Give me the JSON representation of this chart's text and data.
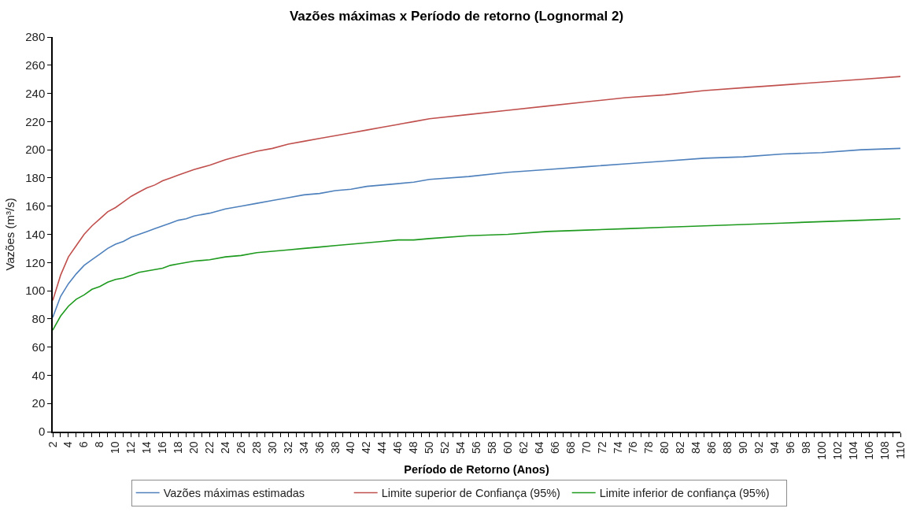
{
  "chart_data": {
    "type": "line",
    "title": "Vazões máximas x Período de retorno (Lognormal 2)",
    "xlabel": "Período de Retorno (Anos)",
    "ylabel": "Vazões (m³/s)",
    "x": [
      2,
      3,
      4,
      5,
      6,
      7,
      8,
      9,
      10,
      11,
      12,
      13,
      14,
      15,
      16,
      17,
      18,
      19,
      20,
      22,
      24,
      26,
      28,
      30,
      32,
      34,
      36,
      38,
      40,
      42,
      44,
      46,
      48,
      50,
      55,
      60,
      65,
      70,
      75,
      80,
      85,
      90,
      95,
      100,
      105,
      110
    ],
    "series": [
      {
        "name": "Vazões máximas estimadas",
        "color": "#4f81bd",
        "values": [
          81,
          96,
          105,
          112,
          118,
          122,
          126,
          130,
          133,
          135,
          138,
          140,
          142,
          144,
          146,
          148,
          150,
          151,
          153,
          155,
          158,
          160,
          162,
          164,
          166,
          168,
          169,
          171,
          172,
          174,
          175,
          176,
          177,
          179,
          181,
          184,
          186,
          188,
          190,
          192,
          194,
          195,
          197,
          198,
          200,
          201
        ]
      },
      {
        "name": "Limite superior de Confiança (95%)",
        "color": "#c0504d",
        "values": [
          93,
          111,
          124,
          132,
          140,
          146,
          151,
          156,
          159,
          163,
          167,
          170,
          173,
          175,
          178,
          180,
          182,
          184,
          186,
          189,
          193,
          196,
          199,
          201,
          204,
          206,
          208,
          210,
          212,
          214,
          216,
          218,
          220,
          222,
          225,
          228,
          231,
          234,
          237,
          239,
          242,
          244,
          246,
          248,
          250,
          252
        ]
      },
      {
        "name": "Limite inferior de confiança (95%)",
        "color": "#1e9a1e",
        "values": [
          72,
          82,
          89,
          94,
          97,
          101,
          103,
          106,
          108,
          109,
          111,
          113,
          114,
          115,
          116,
          118,
          119,
          120,
          121,
          122,
          124,
          125,
          127,
          128,
          129,
          130,
          131,
          132,
          133,
          134,
          135,
          136,
          136,
          137,
          139,
          140,
          142,
          143,
          144,
          145,
          146,
          147,
          148,
          149,
          150,
          151
        ]
      }
    ],
    "xlim": [
      2,
      110
    ],
    "xticks": [
      2,
      {
        "value": 3,
        "label": null
      },
      4,
      {
        "value": 5,
        "label": null
      },
      6,
      {
        "value": 7,
        "label": null
      },
      8,
      {
        "value": 9,
        "label": null
      },
      10,
      {
        "value": 11,
        "label": null
      },
      12,
      {
        "value": 13,
        "label": null
      },
      14,
      {
        "value": 15,
        "label": null
      },
      16,
      {
        "value": 17,
        "label": null
      },
      18,
      {
        "value": 19,
        "label": null
      },
      20,
      {
        "value": 21,
        "label": null
      },
      22,
      {
        "value": 23,
        "label": null
      },
      24,
      {
        "value": 25,
        "label": null
      },
      26,
      {
        "value": 27,
        "label": null
      },
      28,
      {
        "value": 29,
        "label": null
      },
      30,
      {
        "value": 31,
        "label": null
      },
      32,
      {
        "value": 33,
        "label": null
      },
      34,
      {
        "value": 35,
        "label": null
      },
      36,
      {
        "value": 37,
        "label": null
      },
      38,
      {
        "value": 39,
        "label": null
      },
      40,
      {
        "value": 41,
        "label": null
      },
      42,
      {
        "value": 43,
        "label": null
      },
      44,
      {
        "value": 45,
        "label": null
      },
      46,
      {
        "value": 47,
        "label": null
      },
      48,
      {
        "value": 49,
        "label": null
      },
      50,
      {
        "value": 51,
        "label": null
      },
      52,
      {
        "value": 53,
        "label": null
      },
      54,
      {
        "value": 55,
        "label": null
      },
      56,
      {
        "value": 57,
        "label": null
      },
      58,
      {
        "value": 59,
        "label": null
      },
      60,
      {
        "value": 61,
        "label": null
      },
      62,
      {
        "value": 63,
        "label": null
      },
      64,
      {
        "value": 65,
        "label": null
      },
      66,
      {
        "value": 67,
        "label": null
      },
      68,
      {
        "value": 69,
        "label": null
      },
      70,
      {
        "value": 71,
        "label": null
      },
      72,
      {
        "value": 73,
        "label": null
      },
      74,
      {
        "value": 75,
        "label": null
      },
      76,
      {
        "value": 77,
        "label": null
      },
      78,
      {
        "value": 79,
        "label": null
      },
      80,
      {
        "value": 81,
        "label": null
      },
      82,
      {
        "value": 83,
        "label": null
      },
      84,
      {
        "value": 85,
        "label": null
      },
      86,
      {
        "value": 87,
        "label": null
      },
      88,
      {
        "value": 89,
        "label": null
      },
      90,
      {
        "value": 91,
        "label": null
      },
      92,
      {
        "value": 93,
        "label": null
      },
      94,
      {
        "value": 95,
        "label": null
      },
      96,
      {
        "value": 97,
        "label": null
      },
      98,
      {
        "value": 99,
        "label": null
      },
      100,
      {
        "value": 101,
        "label": null
      },
      102,
      {
        "value": 103,
        "label": null
      },
      104,
      {
        "value": 105,
        "label": null
      },
      106,
      {
        "value": 107,
        "label": null
      },
      108,
      {
        "value": 109,
        "label": null
      },
      110
    ],
    "ylim": [
      0,
      280
    ],
    "yticks": [
      0,
      20,
      40,
      60,
      80,
      100,
      120,
      140,
      160,
      180,
      200,
      220,
      240,
      260,
      280
    ],
    "grid": false,
    "legend": "bottom",
    "marker": "none",
    "line_style": "solid"
  }
}
